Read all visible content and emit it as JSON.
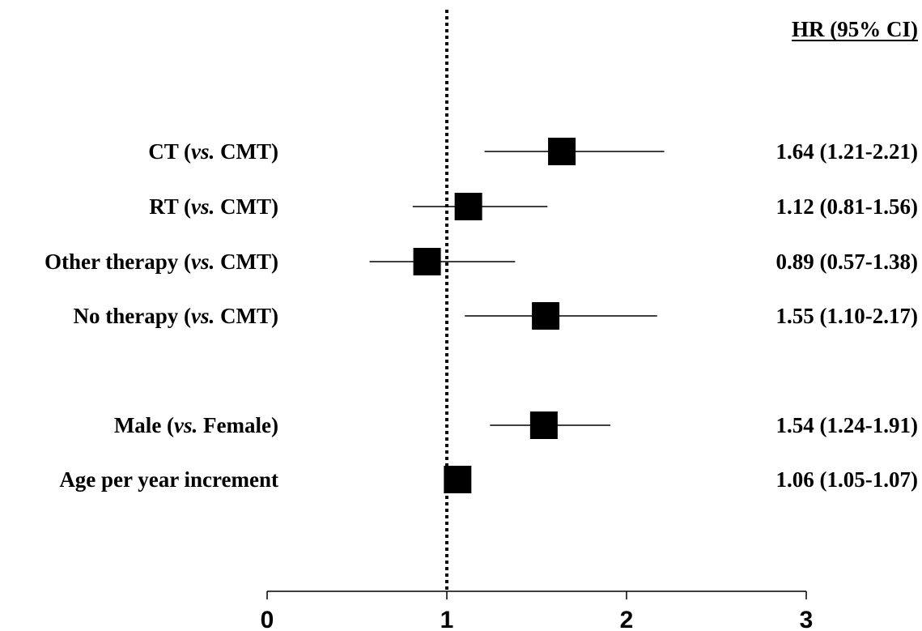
{
  "chart_data": {
    "type": "forest",
    "header": "HR (95% CI)",
    "xlim": [
      0,
      3
    ],
    "xticks": [
      "0",
      "1",
      "2",
      "3"
    ],
    "reference_line": 1,
    "rows": [
      {
        "label_parts": [
          {
            "text": "CT (",
            "italic": false
          },
          {
            "text": "vs.",
            "italic": true
          },
          {
            "text": " CMT)",
            "italic": false
          }
        ],
        "hr": 1.64,
        "lo": 1.21,
        "hi": 2.21,
        "value_text": "1.64 (1.21-2.21)"
      },
      {
        "label_parts": [
          {
            "text": "RT (",
            "italic": false
          },
          {
            "text": "vs.",
            "italic": true
          },
          {
            "text": " CMT)",
            "italic": false
          }
        ],
        "hr": 1.12,
        "lo": 0.81,
        "hi": 1.56,
        "value_text": "1.12 (0.81-1.56)"
      },
      {
        "label_parts": [
          {
            "text": "Other therapy (",
            "italic": false
          },
          {
            "text": "vs.",
            "italic": true
          },
          {
            "text": " CMT)",
            "italic": false
          }
        ],
        "hr": 0.89,
        "lo": 0.57,
        "hi": 1.38,
        "value_text": "0.89 (0.57-1.38)"
      },
      {
        "label_parts": [
          {
            "text": "No therapy (",
            "italic": false
          },
          {
            "text": "vs.",
            "italic": true
          },
          {
            "text": " CMT)",
            "italic": false
          }
        ],
        "hr": 1.55,
        "lo": 1.1,
        "hi": 2.17,
        "value_text": "1.55 (1.10-2.17)"
      },
      {
        "label_parts": [
          {
            "text": "Male (",
            "italic": false
          },
          {
            "text": "vs.",
            "italic": true
          },
          {
            "text": " Female)",
            "italic": false
          }
        ],
        "hr": 1.54,
        "lo": 1.24,
        "hi": 1.91,
        "value_text": "1.54 (1.24-1.91)"
      },
      {
        "label_parts": [
          {
            "text": "Age per year increment",
            "italic": false
          }
        ],
        "hr": 1.06,
        "lo": 1.05,
        "hi": 1.07,
        "value_text": "1.06 (1.05-1.07)"
      }
    ]
  }
}
